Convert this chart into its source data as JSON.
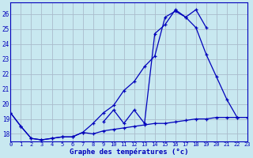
{
  "xlabel": "Graphe des températures (°c)",
  "background_color": "#c8e8f0",
  "grid_color": "#aabbcc",
  "line_color": "#0000bb",
  "x_min": 0,
  "x_max": 23,
  "y_min": 17.5,
  "y_max": 26.8,
  "y_ticks": [
    18,
    19,
    20,
    21,
    22,
    23,
    24,
    25,
    26
  ],
  "series": [
    {
      "x": [
        0,
        1,
        2,
        3,
        4,
        5,
        6,
        7,
        8,
        9,
        10,
        11,
        12,
        13,
        14,
        15,
        16,
        17,
        18,
        19,
        20,
        21,
        22,
        23
      ],
      "y": [
        19.4,
        18.5,
        17.7,
        17.6,
        17.7,
        17.8,
        17.8,
        18.1,
        18.0,
        18.2,
        18.3,
        18.4,
        18.5,
        18.6,
        18.7,
        18.7,
        18.8,
        18.9,
        19.0,
        19.0,
        19.1,
        19.1,
        19.1,
        19.1
      ]
    },
    {
      "x": [
        0,
        1,
        2,
        3,
        4,
        5,
        6,
        7,
        8,
        9,
        10,
        11,
        12,
        13,
        14,
        15,
        16,
        17,
        18,
        19,
        20,
        21,
        22,
        23
      ],
      "y": [
        19.4,
        18.5,
        17.7,
        17.6,
        17.7,
        17.8,
        17.8,
        18.1,
        18.7,
        19.4,
        19.9,
        20.9,
        21.5,
        22.5,
        23.2,
        25.8,
        26.2,
        25.8,
        25.1,
        23.3,
        21.8,
        20.3,
        19.1,
        null
      ]
    },
    {
      "x": [
        9,
        10,
        11,
        12,
        13,
        14,
        15,
        16,
        17,
        18,
        19,
        20,
        21,
        22
      ],
      "y": [
        18.8,
        19.6,
        18.7,
        19.6,
        18.7,
        24.7,
        25.3,
        26.3,
        25.8,
        26.3,
        25.1,
        null,
        null,
        null
      ]
    }
  ]
}
